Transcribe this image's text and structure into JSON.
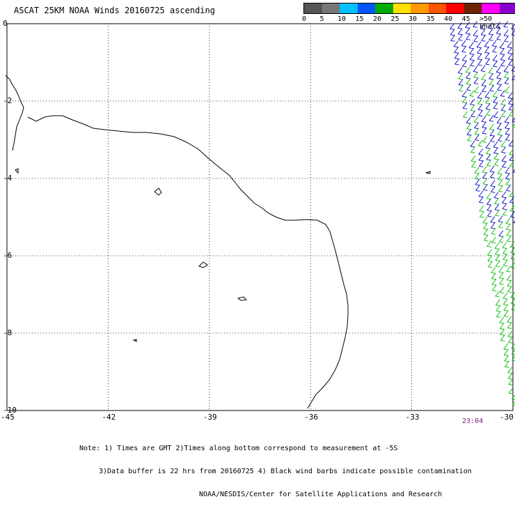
{
  "title": "ASCAT 25KM NOAA Winds 20160725 ascending",
  "legend": {
    "labels": [
      "0",
      "5",
      "10",
      "15",
      "20",
      "25",
      "30",
      "35",
      "40",
      "45",
      ">50 knots"
    ],
    "colors": [
      "#555555",
      "#777777",
      "#00c0ff",
      "#0055ff",
      "#00aa00",
      "#ffe000",
      "#ff9900",
      "#ff5500",
      "#ff0000",
      "#6a2200",
      "#ff00ff",
      "#8800cc"
    ]
  },
  "axes": {
    "x_ticks": [
      "-45",
      "-42",
      "-39",
      "-36",
      "-33",
      "-30"
    ],
    "y_ticks": [
      "0",
      "-2",
      "-4",
      "-6",
      "-8",
      "-10"
    ]
  },
  "time_label": "23:04",
  "notes": [
    "Note: 1) Times are GMT 2)Times along bottom correspond to measurement at -5S",
    "3)Data buffer is 22 hrs from 20160725 4) Black wind barbs indicate possible contamination",
    "NOAA/NESDIS/Center for Satellite Applications and Research"
  ],
  "map": {
    "lon_range": [
      -45,
      -30
    ],
    "lat_range": [
      -10,
      0
    ],
    "barb_colors": {
      "blue": "#0000cc",
      "green": "#00bb00"
    }
  }
}
